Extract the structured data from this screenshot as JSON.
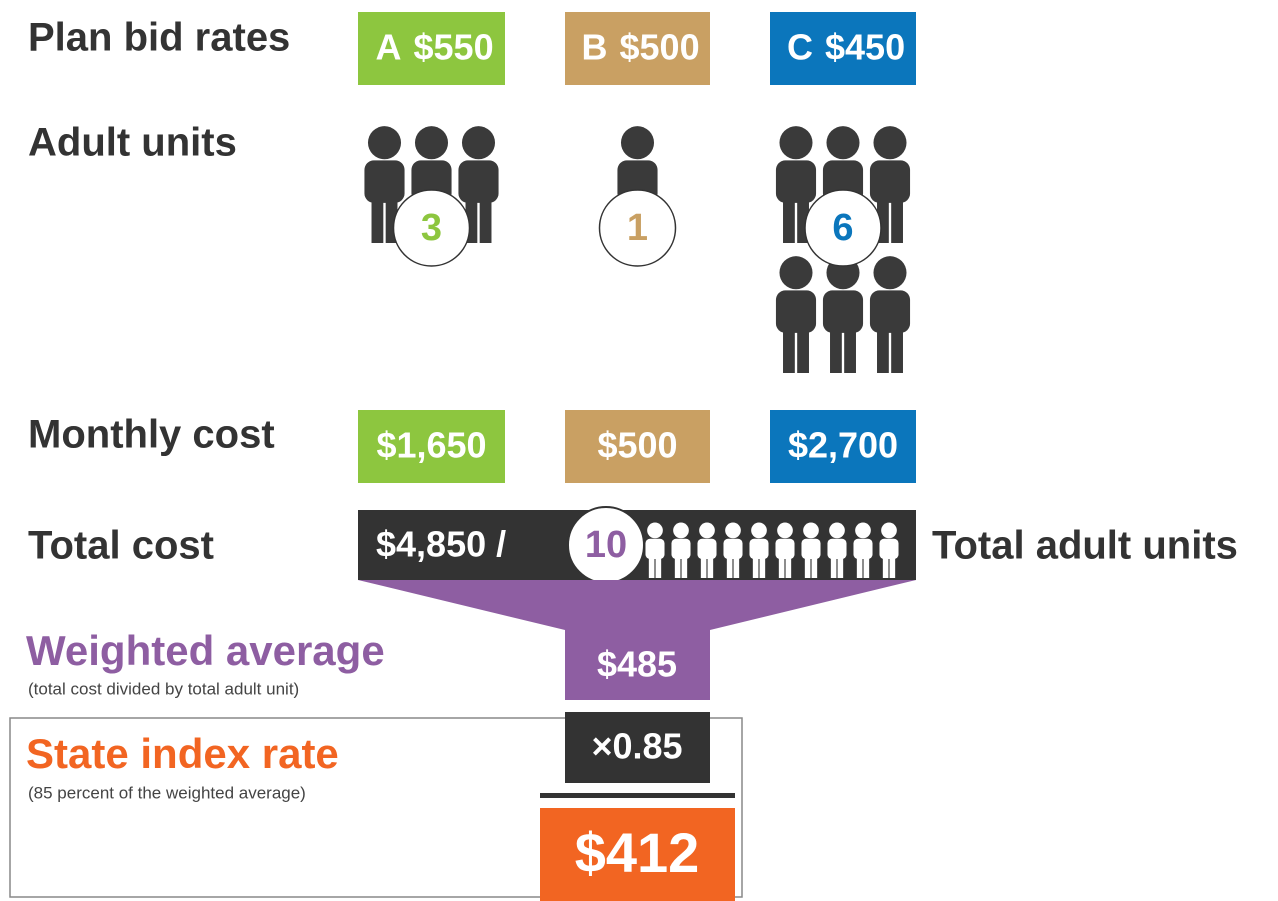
{
  "labels": {
    "plan_bid_rates": "Plan bid rates",
    "adult_units": "Adult units",
    "monthly_cost": "Monthly cost",
    "total_cost": "Total cost",
    "total_adult_units": "Total adult units"
  },
  "plans": [
    {
      "letter": "A",
      "rate": "$550",
      "units": 3,
      "cost": "$1,650",
      "color": "#8dc63f"
    },
    {
      "letter": "B",
      "rate": "$500",
      "units": 1,
      "cost": "$500",
      "color": "#c9a063"
    },
    {
      "letter": "C",
      "rate": "$450",
      "units": 6,
      "cost": "$2,700",
      "color": "#0b76bc"
    }
  ],
  "total": {
    "cost": "$4,850 /",
    "units": 10
  },
  "weighted_average": {
    "title": "Weighted average",
    "note": "(total cost divided by total adult unit)",
    "value": "$485",
    "color": "#8e5ea2"
  },
  "multiplier": "×0.85",
  "state_index_rate": {
    "title": "State index rate",
    "note": "(85 percent of the weighted average)",
    "value": "$412",
    "color": "#f26522"
  }
}
